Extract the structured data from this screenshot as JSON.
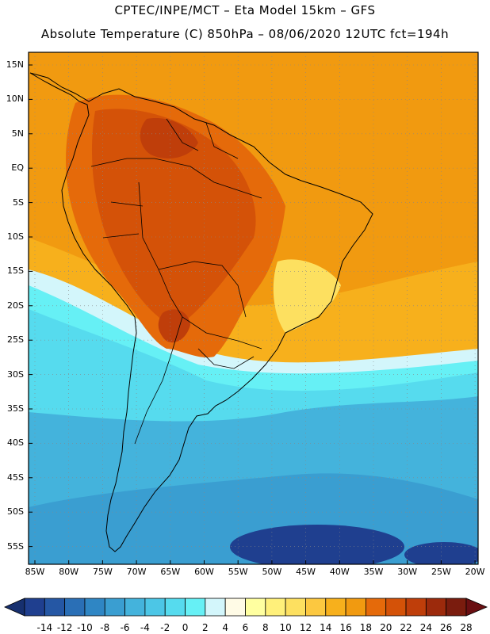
{
  "header": {
    "line1": "CPTEC/INPE/MCT –  Eta Model 15km – GFS",
    "line2": "Absolute Temperature (C) 850hPa – 08/06/2020 12UTC fct=194h"
  },
  "axes": {
    "lat_labels": [
      "15N",
      "10N",
      "5N",
      "EQ",
      "5S",
      "10S",
      "15S",
      "20S",
      "25S",
      "30S",
      "35S",
      "40S",
      "45S",
      "50S",
      "55S"
    ],
    "lon_labels": [
      "85W",
      "80W",
      "75W",
      "70W",
      "65W",
      "60W",
      "55W",
      "50W",
      "45W",
      "40W",
      "35W",
      "30W",
      "25W",
      "20W"
    ]
  },
  "colorbar": {
    "ticks": [
      "-14",
      "-12",
      "-10",
      "-8",
      "-6",
      "-4",
      "-2",
      "0",
      "2",
      "4",
      "6",
      "8",
      "10",
      "12",
      "14",
      "16",
      "18",
      "20",
      "22",
      "24",
      "26",
      "28"
    ],
    "colors": [
      "#1f3f8f",
      "#2557a4",
      "#2a6fb6",
      "#2f86c4",
      "#3a9ed1",
      "#44b3dc",
      "#4cc6e6",
      "#56dbee",
      "#66f0f5",
      "#d3f6fb",
      "#fffbe6",
      "#ffffa0",
      "#fff07a",
      "#fde060",
      "#fcc840",
      "#f7b01c",
      "#f19a10",
      "#e56a0a",
      "#d45208",
      "#bf3e0a",
      "#9c2a0c",
      "#7a1c0e"
    ],
    "under_color": "#17306f",
    "over_color": "#6a0f12"
  },
  "map_colors": {
    "ocean_cold_deep": "#1f3f8f",
    "ocean_cold": "#3a9ed1",
    "ocean_mid": "#44b3dc",
    "ocean_cyan": "#56dbee",
    "ocean_light": "#66f0f5",
    "transition": "#d3f6fb",
    "yellow": "#fde060",
    "gold": "#f7b01c",
    "orange": "#f19a10",
    "land_warm": "#e56a0a",
    "land_hot": "#d45208",
    "land_hotter": "#bf3e0a"
  }
}
